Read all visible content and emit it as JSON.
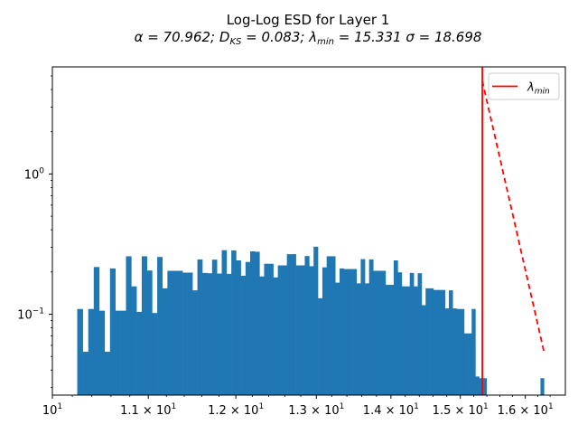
{
  "chart_data": {
    "type": "bar",
    "title": "Log-Log ESD for Layer 1",
    "subtitle": {
      "alpha_label": "α = 70.962; ",
      "dks_main": "D",
      "dks_sub": "KS",
      "dks_rest": " = 0.083; ",
      "lmin_main": "λ",
      "lmin_sub": "min",
      "lmin_rest": " = 15.331 ",
      "sigma_label": "σ = 18.698"
    },
    "xlabel": "",
    "ylabel": "",
    "x_scale": "log",
    "y_scale": "log",
    "xlim": [
      10.0,
      16.65
    ],
    "ylim": [
      0.0265,
      5.8
    ],
    "grid": false,
    "x_ticks": [
      {
        "value": 10,
        "base": "10",
        "exp": "1",
        "coef": ""
      },
      {
        "value": 11,
        "base": "10",
        "exp": "1",
        "coef": "1.1 × "
      },
      {
        "value": 12,
        "base": "10",
        "exp": "1",
        "coef": "1.2 × "
      },
      {
        "value": 13,
        "base": "10",
        "exp": "1",
        "coef": "1.3 × "
      },
      {
        "value": 14,
        "base": "10",
        "exp": "1",
        "coef": "1.4 × "
      },
      {
        "value": 15,
        "base": "10",
        "exp": "1",
        "coef": "1.5 × "
      },
      {
        "value": 16,
        "base": "10",
        "exp": "1",
        "coef": "1.6 × "
      }
    ],
    "y_ticks": [
      {
        "value": 0.1,
        "base": "10",
        "exp": "−1"
      },
      {
        "value": 1,
        "base": "10",
        "exp": "0"
      }
    ],
    "histogram": {
      "color": "#1f77b4",
      "x_start": 10.25,
      "x_end": 16.3,
      "bin_count": 107,
      "values": [
        0.109,
        0.054,
        0.109,
        0.217,
        0.106,
        0.054,
        0.212,
        0.106,
        0.106,
        0.259,
        0.158,
        0.104,
        0.259,
        0.205,
        0.102,
        0.256,
        0.153,
        0.204,
        0.204,
        0.204,
        0.198,
        0.198,
        0.148,
        0.246,
        0.197,
        0.196,
        0.245,
        0.195,
        0.286,
        0.194,
        0.285,
        0.242,
        0.188,
        0.236,
        0.281,
        0.279,
        0.186,
        0.229,
        0.229,
        0.183,
        0.223,
        0.223,
        0.268,
        0.268,
        0.223,
        0.223,
        0.26,
        0.22,
        0.303,
        0.13,
        0.216,
        0.259,
        0.259,
        0.168,
        0.212,
        0.21,
        0.21,
        0.21,
        0.166,
        0.247,
        0.166,
        0.246,
        0.204,
        0.204,
        0.204,
        0.162,
        0.162,
        0.242,
        0.199,
        0.158,
        0.158,
        0.197,
        0.158,
        0.196,
        0.116,
        0.153,
        0.153,
        0.149,
        0.149,
        0.149,
        0.11,
        0.148,
        0.11,
        0.109,
        0.109,
        0.073,
        0.073,
        0.109,
        0.036,
        0.035,
        0.035,
        0,
        0,
        0,
        0,
        0,
        0,
        0,
        0,
        0,
        0,
        0,
        0,
        0,
        0,
        0,
        0.035
      ]
    },
    "lambda_min_line": {
      "x": 15.331,
      "color": "#ff0000",
      "style": "solid"
    },
    "fit_line": {
      "x": [
        15.331,
        16.3
      ],
      "y": [
        4.6,
        0.054
      ],
      "color": "#ff0000",
      "style": "dashed"
    },
    "legend": {
      "placement": "top-right",
      "entries": [
        {
          "symbol_main": "λ",
          "symbol_sub": "min",
          "color": "#ff0000"
        }
      ]
    }
  }
}
